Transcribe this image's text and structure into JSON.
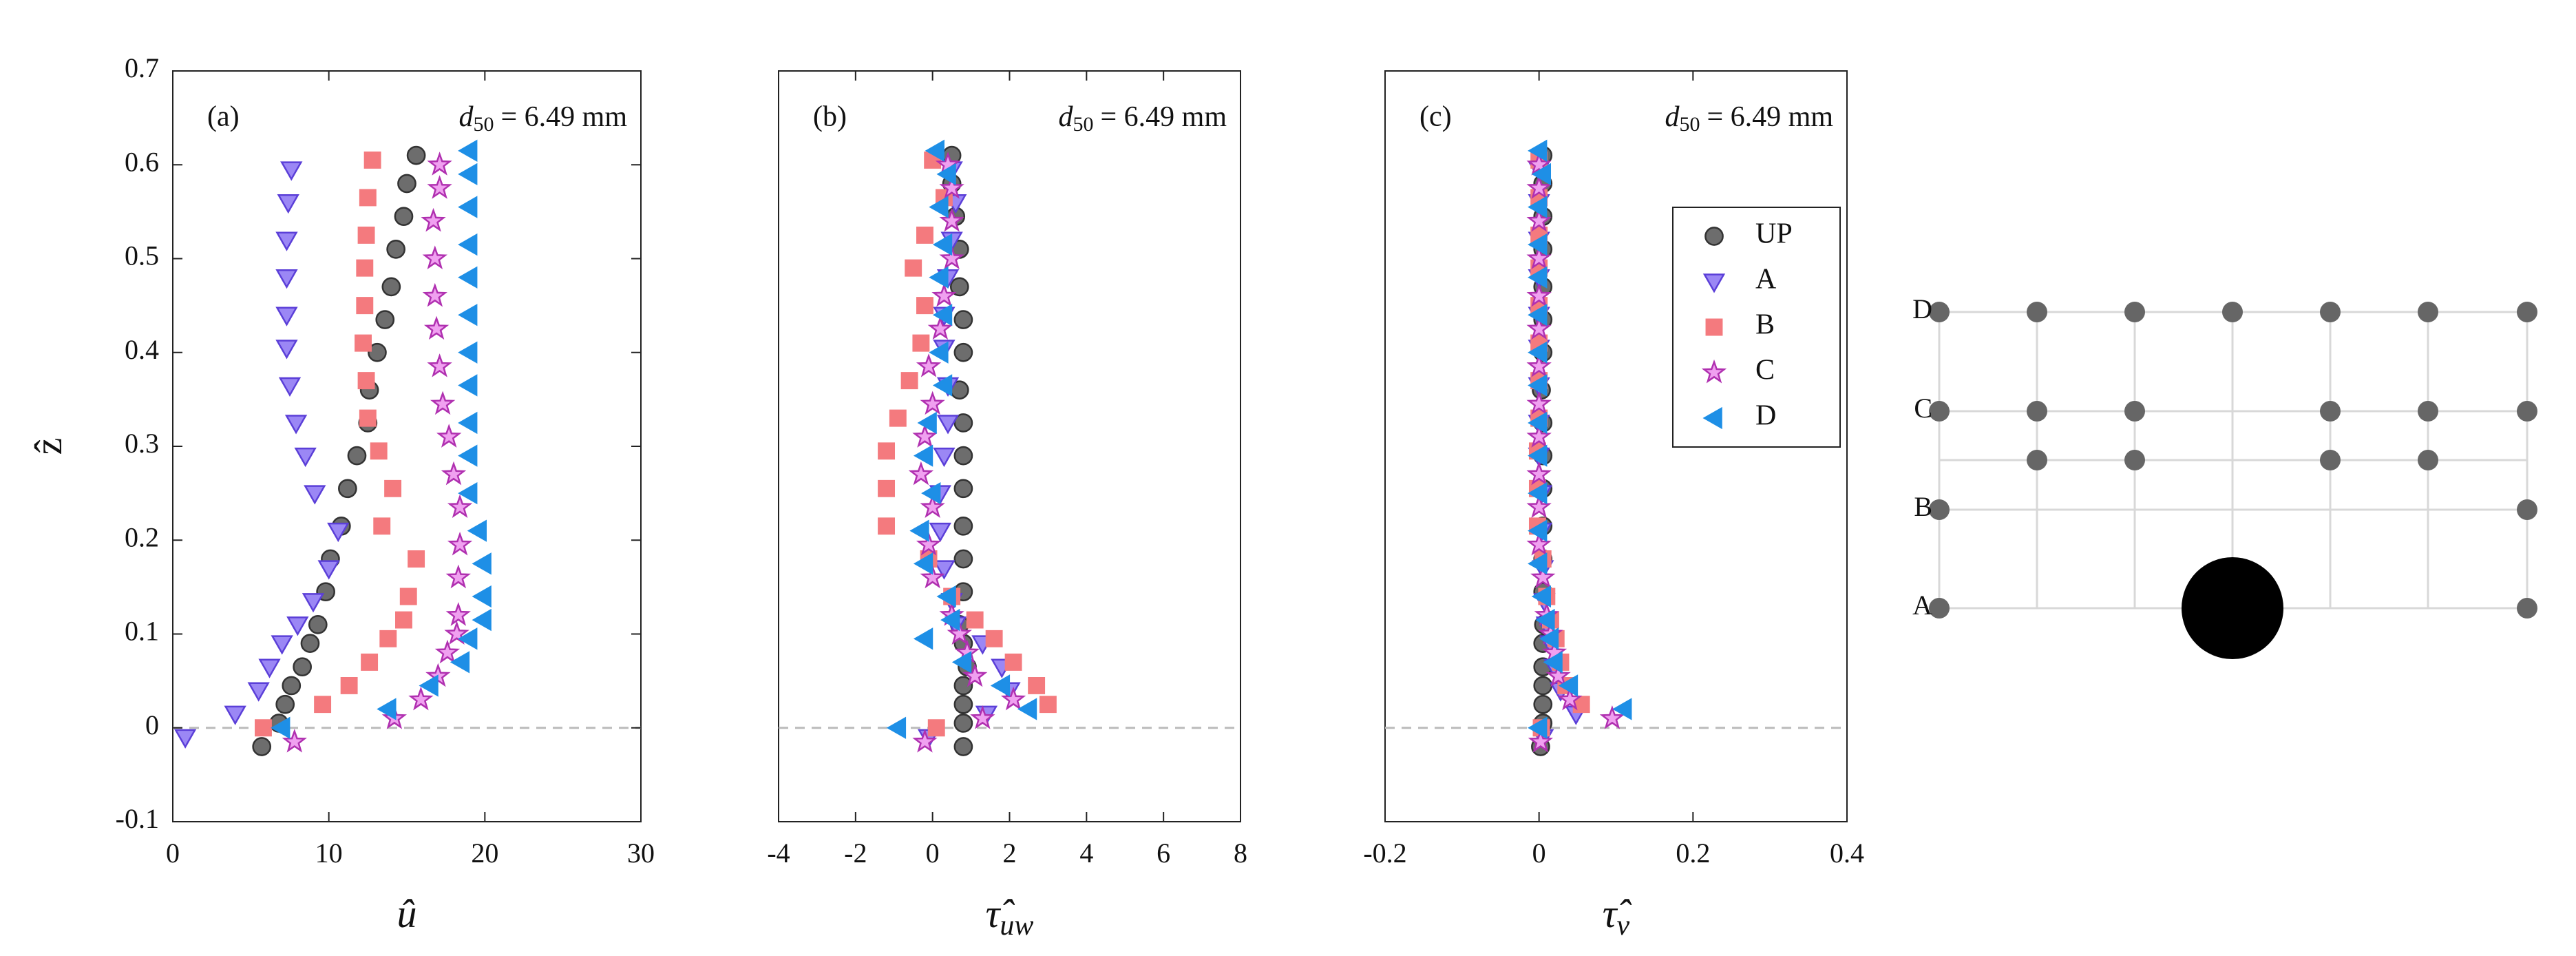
{
  "chart_data": [
    {
      "type": "scatter",
      "panel_label": "(a)",
      "annotation": [
        "d",
        "50",
        "= 6.49 mm"
      ],
      "xlabel": [
        "û"
      ],
      "ylabel": "ẑ",
      "xlim": [
        0,
        30
      ],
      "xticks": [
        0,
        10,
        20,
        30
      ],
      "ylim": [
        -0.1,
        0.7
      ],
      "yticks": [
        -0.1,
        0,
        0.1,
        0.2,
        0.3,
        0.4,
        0.5,
        0.6,
        0.7
      ],
      "zero_line": true,
      "series": [
        {
          "marker": "o",
          "color": "#6d6d6d",
          "edgecolor": "#333333",
          "x": [
            5.7,
            6.8,
            7.2,
            7.6,
            8.3,
            8.8,
            9.3,
            9.8,
            10.1,
            10.8,
            11.2,
            11.8,
            12.5,
            12.6,
            13.1,
            13.6,
            14,
            14.3,
            14.8,
            15,
            15.6
          ],
          "y": [
            -0.02,
            0.005,
            0.025,
            0.045,
            0.065,
            0.09,
            0.11,
            0.145,
            0.18,
            0.215,
            0.255,
            0.29,
            0.325,
            0.36,
            0.4,
            0.435,
            0.47,
            0.51,
            0.545,
            0.58,
            0.61
          ]
        },
        {
          "marker": "v",
          "color": "#9b87f5",
          "edgecolor": "#5b3fd8",
          "x": [
            0.8,
            4,
            5.5,
            6.2,
            7,
            8,
            9,
            10,
            10.6,
            9.1,
            8.5,
            7.9,
            7.5,
            7.3,
            7.3,
            7.3,
            7.3,
            7.4,
            7.6
          ],
          "y": [
            -0.01,
            0.015,
            0.04,
            0.065,
            0.09,
            0.11,
            0.135,
            0.17,
            0.21,
            0.25,
            0.29,
            0.325,
            0.365,
            0.405,
            0.44,
            0.48,
            0.52,
            0.56,
            0.595
          ]
        },
        {
          "marker": "s",
          "color": "#f47a7e",
          "edgecolor": "#f47a7e",
          "x": [
            5.8,
            9.6,
            11.3,
            12.6,
            13.8,
            14.8,
            15.1,
            15.6,
            13.4,
            14.1,
            13.2,
            12.5,
            12.4,
            12.2,
            12.3,
            12.3,
            12.4,
            12.5,
            12.8
          ],
          "y": [
            0,
            0.025,
            0.045,
            0.07,
            0.095,
            0.115,
            0.14,
            0.18,
            0.215,
            0.255,
            0.295,
            0.33,
            0.37,
            0.41,
            0.45,
            0.49,
            0.525,
            0.565,
            0.605
          ]
        },
        {
          "marker": "*",
          "color": "#f0a0f0",
          "edgecolor": "#b030b0",
          "x": [
            7.8,
            14.2,
            15.9,
            17,
            17.6,
            18.2,
            18.3,
            18.3,
            18.4,
            18.4,
            18,
            17.7,
            17.3,
            17.1,
            16.9,
            16.8,
            16.8,
            16.7,
            17.1,
            17.1
          ],
          "y": [
            -0.015,
            0.01,
            0.03,
            0.055,
            0.08,
            0.1,
            0.12,
            0.16,
            0.195,
            0.235,
            0.27,
            0.31,
            0.345,
            0.385,
            0.425,
            0.46,
            0.5,
            0.54,
            0.575,
            0.6
          ]
        },
        {
          "marker": "<",
          "color": "#1e8fe6",
          "edgecolor": "#1e8fe6",
          "x": [
            7,
            13.8,
            16.5,
            18.5,
            19,
            19.9,
            19.9,
            19.9,
            19.6,
            19,
            19,
            19,
            19,
            19,
            19,
            19,
            19,
            19,
            19,
            19
          ],
          "y": [
            0,
            0.02,
            0.045,
            0.07,
            0.095,
            0.115,
            0.14,
            0.175,
            0.21,
            0.25,
            0.29,
            0.325,
            0.365,
            0.4,
            0.44,
            0.48,
            0.515,
            0.555,
            0.59,
            0.615
          ]
        }
      ]
    },
    {
      "type": "scatter",
      "panel_label": "(b)",
      "annotation": [
        "d",
        "50",
        "= 6.49 mm"
      ],
      "xlabel": [
        "τ̂",
        "uw"
      ],
      "xlim": [
        -4,
        8
      ],
      "xticks": [
        -4,
        -2,
        0,
        2,
        4,
        6,
        8
      ],
      "ylim": [
        -0.1,
        0.7
      ],
      "zero_line": true,
      "series": [
        {
          "marker": "o",
          "color": "#6d6d6d",
          "edgecolor": "#333333",
          "x": [
            0.8,
            0.8,
            0.8,
            0.8,
            0.9,
            0.8,
            0.7,
            0.8,
            0.8,
            0.8,
            0.8,
            0.8,
            0.8,
            0.7,
            0.8,
            0.8,
            0.7,
            0.7,
            0.6,
            0.5,
            0.5
          ],
          "y": [
            -0.02,
            0.005,
            0.025,
            0.045,
            0.065,
            0.09,
            0.11,
            0.145,
            0.18,
            0.215,
            0.255,
            0.29,
            0.325,
            0.36,
            0.4,
            0.435,
            0.47,
            0.51,
            0.545,
            0.58,
            0.61
          ]
        },
        {
          "marker": "v",
          "color": "#9b87f5",
          "edgecolor": "#5b3fd8",
          "x": [
            -0.1,
            1.4,
            2,
            1.8,
            1.3,
            0.6,
            0.5,
            0.3,
            0.2,
            0.2,
            0.3,
            0.4,
            0.4,
            0.3,
            0.3,
            0.4,
            0.5,
            0.6,
            0.5
          ],
          "y": [
            -0.01,
            0.015,
            0.04,
            0.065,
            0.09,
            0.11,
            0.135,
            0.17,
            0.21,
            0.25,
            0.29,
            0.325,
            0.365,
            0.405,
            0.44,
            0.48,
            0.52,
            0.56,
            0.595
          ]
        },
        {
          "marker": "s",
          "color": "#f47a7e",
          "edgecolor": "#f47a7e",
          "x": [
            0.1,
            3,
            2.7,
            2.1,
            1.6,
            1.1,
            0.5,
            -0.1,
            -1.2,
            -1.2,
            -1.2,
            -0.9,
            -0.6,
            -0.3,
            -0.2,
            -0.5,
            -0.2,
            0.3,
            0
          ],
          "y": [
            0,
            0.025,
            0.045,
            0.07,
            0.095,
            0.115,
            0.14,
            0.18,
            0.215,
            0.255,
            0.295,
            0.33,
            0.37,
            0.41,
            0.45,
            0.49,
            0.525,
            0.565,
            0.605
          ]
        },
        {
          "marker": "*",
          "color": "#f0a0f0",
          "edgecolor": "#b030b0",
          "x": [
            -0.2,
            1.3,
            2.1,
            1.1,
            0.9,
            0.7,
            0.5,
            0,
            -0.1,
            0,
            -0.3,
            -0.2,
            0,
            -0.1,
            0.2,
            0.3,
            0.5,
            0.5,
            0.5,
            0.4
          ],
          "y": [
            -0.015,
            0.01,
            0.03,
            0.055,
            0.08,
            0.1,
            0.12,
            0.16,
            0.195,
            0.235,
            0.27,
            0.31,
            0.345,
            0.385,
            0.425,
            0.46,
            0.5,
            0.54,
            0.575,
            0.6
          ]
        },
        {
          "marker": "<",
          "color": "#1e8fe6",
          "edgecolor": "#1e8fe6",
          "x": [
            -0.9,
            2.5,
            1.8,
            0.8,
            -0.2,
            0.5,
            0.4,
            -0.2,
            -0.3,
            0,
            -0.2,
            -0.1,
            0.3,
            0.2,
            0.3,
            0.2,
            0.3,
            0.2,
            0.4,
            0.1
          ],
          "y": [
            0,
            0.02,
            0.045,
            0.07,
            0.095,
            0.115,
            0.14,
            0.175,
            0.21,
            0.25,
            0.29,
            0.325,
            0.365,
            0.4,
            0.44,
            0.48,
            0.515,
            0.555,
            0.59,
            0.615
          ]
        }
      ]
    },
    {
      "type": "scatter",
      "panel_label": "(c)",
      "annotation": [
        "d",
        "50",
        "= 6.49 mm"
      ],
      "xlabel": [
        "τ̂",
        "ν"
      ],
      "xlim": [
        -0.2,
        0.4
      ],
      "xticks": [
        -0.2,
        0,
        0.2,
        0.4
      ],
      "ylim": [
        -0.1,
        0.7
      ],
      "zero_line": true,
      "legend": "upper right",
      "series": [
        {
          "name": "UP",
          "marker": "o",
          "color": "#6d6d6d",
          "edgecolor": "#333333",
          "x": [
            0.002,
            0.005,
            0.005,
            0.005,
            0.005,
            0.005,
            0.006,
            0.005,
            0.005,
            0.005,
            0.005,
            0.005,
            0.005,
            0.003,
            0.005,
            0.005,
            0.005,
            0.005,
            0.005,
            0.005,
            0.005
          ],
          "y": [
            -0.02,
            0.005,
            0.025,
            0.045,
            0.065,
            0.09,
            0.11,
            0.145,
            0.18,
            0.215,
            0.255,
            0.29,
            0.325,
            0.36,
            0.4,
            0.435,
            0.47,
            0.51,
            0.545,
            0.58,
            0.61
          ]
        },
        {
          "name": "A",
          "marker": "v",
          "color": "#9b87f5",
          "edgecolor": "#5b3fd8",
          "x": [
            0.005,
            0.048,
            0.028,
            0.02,
            0.015,
            0.01,
            0.007,
            0.005,
            0.003,
            0.003,
            0,
            0,
            0,
            0,
            0,
            0,
            0,
            0,
            0
          ],
          "y": [
            -0.01,
            0.015,
            0.04,
            0.065,
            0.09,
            0.11,
            0.135,
            0.17,
            0.21,
            0.25,
            0.29,
            0.325,
            0.365,
            0.405,
            0.44,
            0.48,
            0.52,
            0.56,
            0.595
          ]
        },
        {
          "name": "B",
          "marker": "s",
          "color": "#f47a7e",
          "edgecolor": "#f47a7e",
          "x": [
            0.003,
            0.055,
            0.035,
            0.028,
            0.022,
            0.015,
            0.01,
            0.005,
            -0.002,
            -0.002,
            -0.002,
            0,
            0,
            0,
            0,
            0,
            0,
            0,
            0
          ],
          "y": [
            0,
            0.025,
            0.045,
            0.07,
            0.095,
            0.115,
            0.14,
            0.18,
            0.215,
            0.255,
            0.295,
            0.33,
            0.37,
            0.41,
            0.45,
            0.49,
            0.525,
            0.565,
            0.605
          ]
        },
        {
          "name": "C",
          "marker": "*",
          "color": "#f0a0f0",
          "edgecolor": "#b030b0",
          "x": [
            0.002,
            0.095,
            0.04,
            0.025,
            0.02,
            0.015,
            0.01,
            0.005,
            0,
            0,
            0,
            0,
            0,
            0,
            0,
            0,
            0,
            0,
            0,
            0
          ],
          "y": [
            -0.015,
            0.01,
            0.03,
            0.055,
            0.08,
            0.1,
            0.12,
            0.16,
            0.195,
            0.235,
            0.27,
            0.31,
            0.345,
            0.385,
            0.425,
            0.46,
            0.5,
            0.54,
            0.575,
            0.6
          ]
        },
        {
          "name": "D",
          "marker": "<",
          "color": "#1e8fe6",
          "edgecolor": "#1e8fe6",
          "x": [
            0,
            0.11,
            0.04,
            0.02,
            0.015,
            0.01,
            0.005,
            0,
            0,
            0,
            0,
            0,
            0,
            0,
            0,
            0,
            0,
            0,
            0.005,
            0
          ],
          "y": [
            0,
            0.02,
            0.045,
            0.07,
            0.095,
            0.115,
            0.14,
            0.175,
            0.21,
            0.25,
            0.29,
            0.325,
            0.365,
            0.4,
            0.44,
            0.48,
            0.515,
            0.555,
            0.59,
            0.615
          ]
        }
      ]
    }
  ],
  "diagram": {
    "row_labels": [
      "D",
      "C",
      "B",
      "A"
    ]
  }
}
